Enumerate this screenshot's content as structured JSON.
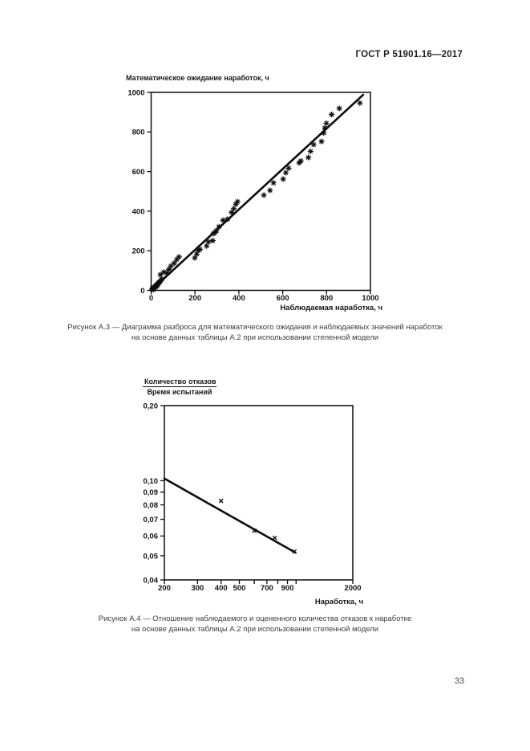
{
  "header": {
    "title": "ГОСТ Р 51901.16—2017"
  },
  "footer": {
    "page_number": "33"
  },
  "captions": {
    "a3_line1": "Рисунок А.3 — Диаграмма разброса для математического ожидания и наблюдаемых значений наработок",
    "a3_line2": "на основе данных таблицы А.2 при использовании степенной модели",
    "a4_line1": "Рисунок А.4 — Отношение наблюдаемого и оцененного количества отказов к наработке",
    "a4_line2": "на основе данных таблицы А.2 при использовании степенной модели"
  },
  "chart_colors": {
    "ink": "#0d0d0d"
  },
  "charts": [
    {
      "id": "a3",
      "type": "scatter",
      "title": "",
      "y_axis_title": "Математическое ожидание наработок, ч",
      "x_axis_title": "Наблюдаемая наработка, ч",
      "x_scale": "linear",
      "y_scale": "linear",
      "x_range": [
        0,
        1000
      ],
      "y_range": [
        0,
        1000
      ],
      "x_ticks": [
        {
          "value": 0,
          "label": "0"
        },
        {
          "value": 200,
          "label": "200"
        },
        {
          "value": 400,
          "label": "400"
        },
        {
          "value": 600,
          "label": "600"
        },
        {
          "value": 800,
          "label": "800"
        },
        {
          "value": 1000,
          "label": "1000"
        }
      ],
      "y_ticks": [
        {
          "value": 0,
          "label": "0"
        },
        {
          "value": 200,
          "label": "200"
        },
        {
          "value": 400,
          "label": "400"
        },
        {
          "value": 600,
          "label": "600"
        },
        {
          "value": 800,
          "label": "800"
        },
        {
          "value": 1000,
          "label": "1000"
        }
      ],
      "fit_line": {
        "x1": 0,
        "y1": 0,
        "x2": 967,
        "y2": 988
      },
      "marker": "asterisk",
      "points": [
        [
          4,
          6
        ],
        [
          7,
          10
        ],
        [
          10,
          4
        ],
        [
          12,
          14
        ],
        [
          15,
          10
        ],
        [
          17,
          19
        ],
        [
          20,
          16
        ],
        [
          22,
          24
        ],
        [
          25,
          28
        ],
        [
          28,
          22
        ],
        [
          30,
          32
        ],
        [
          33,
          36
        ],
        [
          36,
          40
        ],
        [
          40,
          44
        ],
        [
          45,
          50
        ],
        [
          48,
          57
        ],
        [
          42,
          79
        ],
        [
          58,
          92
        ],
        [
          72,
          88
        ],
        [
          81,
          106
        ],
        [
          90,
          123
        ],
        [
          105,
          137
        ],
        [
          117,
          156
        ],
        [
          127,
          169
        ],
        [
          199,
          164
        ],
        [
          208,
          183
        ],
        [
          214,
          201
        ],
        [
          223,
          207
        ],
        [
          253,
          224
        ],
        [
          261,
          245
        ],
        [
          281,
          251
        ],
        [
          283,
          286
        ],
        [
          292,
          293
        ],
        [
          298,
          302
        ],
        [
          310,
          322
        ],
        [
          328,
          354
        ],
        [
          349,
          360
        ],
        [
          367,
          394
        ],
        [
          377,
          413
        ],
        [
          386,
          435
        ],
        [
          394,
          448
        ],
        [
          514,
          481
        ],
        [
          542,
          505
        ],
        [
          558,
          543
        ],
        [
          602,
          562
        ],
        [
          614,
          594
        ],
        [
          627,
          617
        ],
        [
          675,
          644
        ],
        [
          683,
          654
        ],
        [
          717,
          671
        ],
        [
          727,
          702
        ],
        [
          741,
          736
        ],
        [
          777,
          752
        ],
        [
          787,
          795
        ],
        [
          792,
          820
        ],
        [
          799,
          844
        ],
        [
          823,
          888
        ],
        [
          858,
          919
        ],
        [
          952,
          946
        ]
      ]
    },
    {
      "id": "a4",
      "type": "scatter",
      "title": "",
      "y_axis_title_numerator": "Количество отказов",
      "y_axis_title_denominator": "Время испытаний",
      "x_axis_title": "Наработка, ч",
      "x_scale": "log",
      "y_scale": "log",
      "x_range": [
        200,
        2000
      ],
      "y_range": [
        0.04,
        0.2
      ],
      "x_ticks": [
        {
          "value": 200,
          "label": "200"
        },
        {
          "value": 300,
          "label": "300"
        },
        {
          "value": 400,
          "label": "400"
        },
        {
          "value": 500,
          "label": "500"
        },
        {
          "value": 600,
          "label": ""
        },
        {
          "value": 700,
          "label": "700"
        },
        {
          "value": 800,
          "label": ""
        },
        {
          "value": 900,
          "label": "900"
        },
        {
          "value": 1000,
          "label": ""
        },
        {
          "value": 2000,
          "label": "2000"
        }
      ],
      "y_ticks": [
        {
          "value": 0.2,
          "label": "0,20"
        },
        {
          "value": 0.1,
          "label": "0,10"
        },
        {
          "value": 0.09,
          "label": "0,09"
        },
        {
          "value": 0.08,
          "label": "0,08"
        },
        {
          "value": 0.07,
          "label": "0,07"
        },
        {
          "value": 0.06,
          "label": "0,06"
        },
        {
          "value": 0.05,
          "label": "0,05"
        },
        {
          "value": 0.04,
          "label": "0,04"
        }
      ],
      "fit_line": {
        "x1": 200,
        "y1": 0.102,
        "x2": 990,
        "y2": 0.0515
      },
      "marker": "x",
      "points": [
        [
          400,
          0.083
        ],
        [
          600,
          0.063
        ],
        [
          770,
          0.059
        ],
        [
          980,
          0.052
        ]
      ]
    }
  ]
}
